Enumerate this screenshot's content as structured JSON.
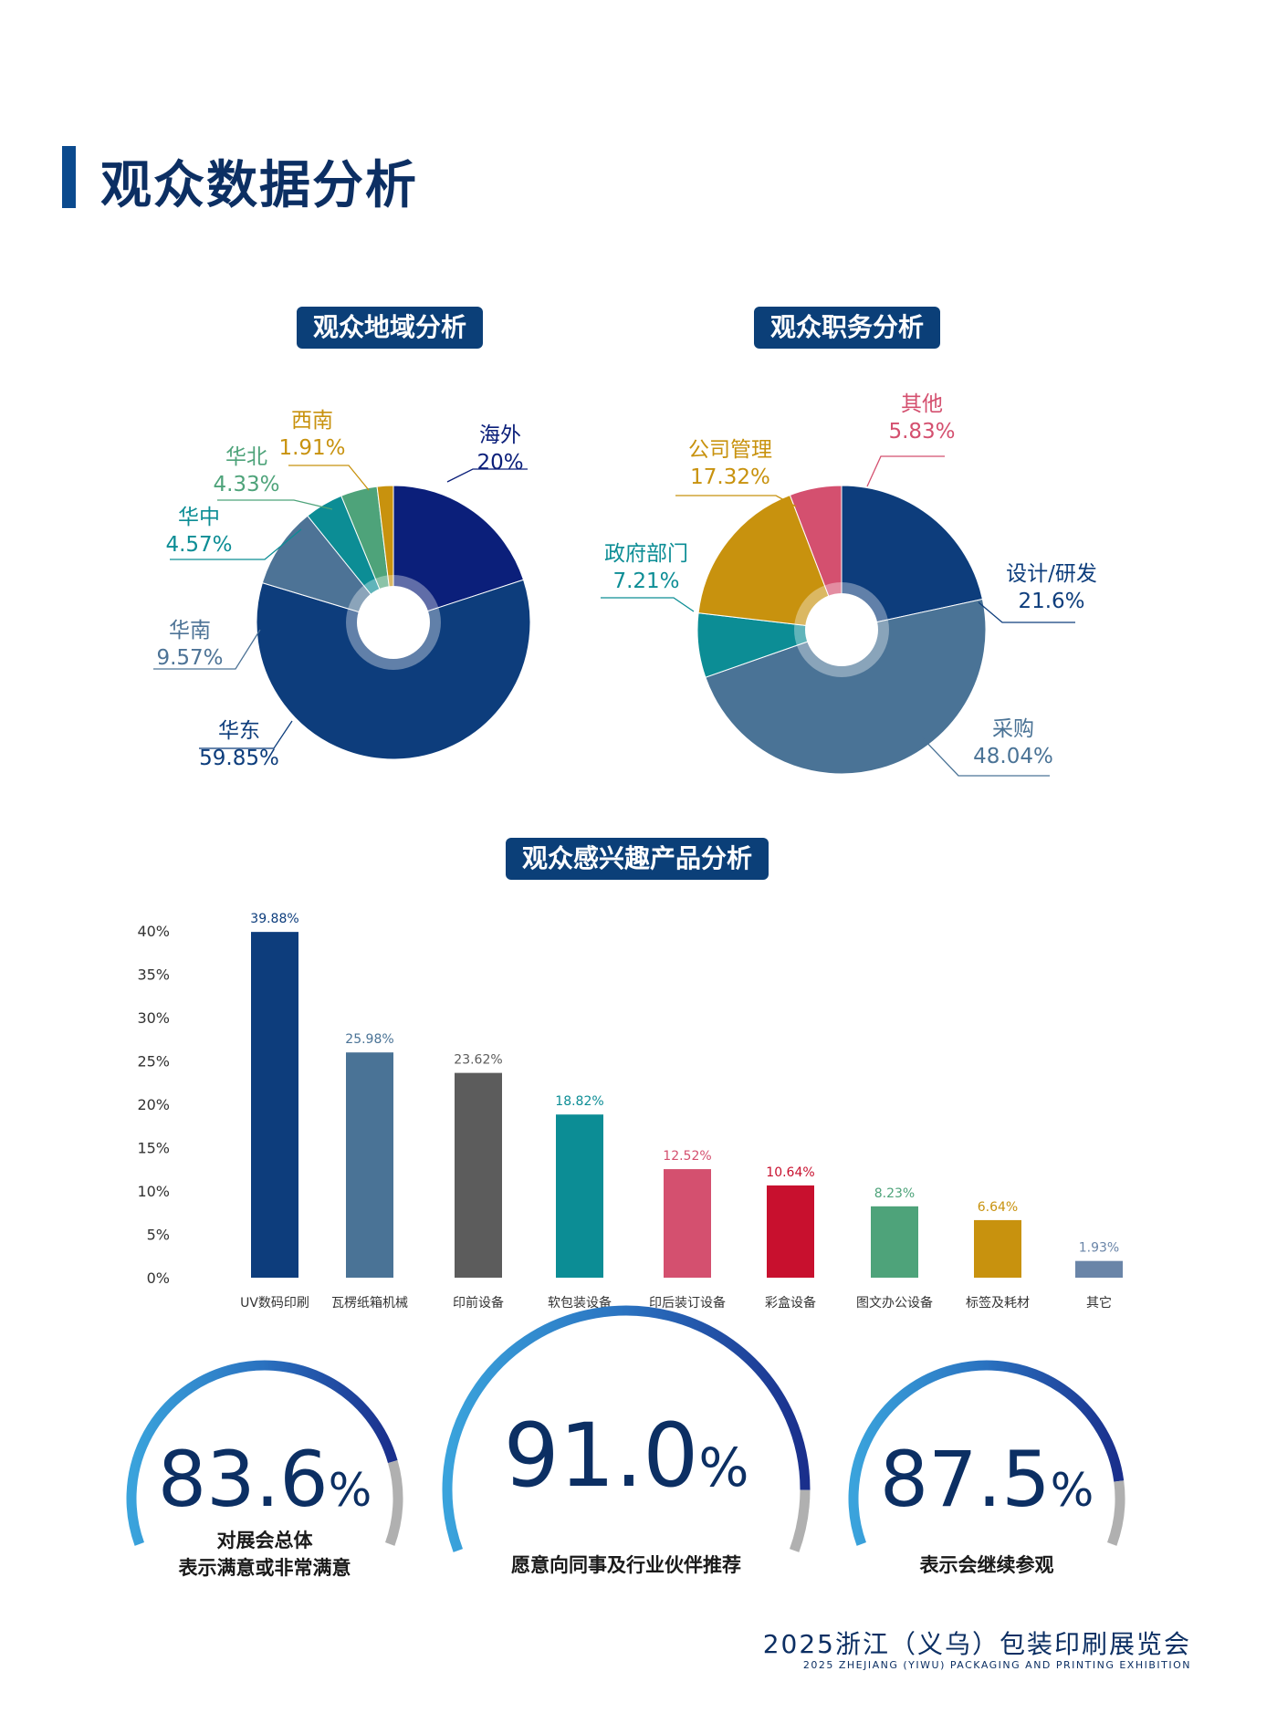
{
  "page": {
    "title": "观众数据分析",
    "footer_cn": "2025浙江（义乌）包装印刷展览会",
    "footer_en": "2025 ZHEJIANG (YIWU) PACKAGING AND PRINTING EXHIBITION"
  },
  "colors": {
    "title_bar": "#0b4a8e",
    "pill_bg": "#0b3f78"
  },
  "chart_data": [
    {
      "type": "pie",
      "title": "观众地域分析",
      "slices": [
        {
          "label": "海外",
          "value": 20,
          "value_label": "20%",
          "color": "#0b1f7a",
          "label_color": "#0b1f7a"
        },
        {
          "label": "华东",
          "value": 59.85,
          "value_label": "59.85%",
          "color": "#0d3d7c",
          "label_color": "#0d3d7c"
        },
        {
          "label": "华南",
          "value": 9.57,
          "value_label": "9.57%",
          "color": "#4d7396",
          "label_color": "#4d7396"
        },
        {
          "label": "华中",
          "value": 4.57,
          "value_label": "4.57%",
          "color": "#0c8d95",
          "label_color": "#0c8d95"
        },
        {
          "label": "华北",
          "value": 4.33,
          "value_label": "4.33%",
          "color": "#4ea37a",
          "label_color": "#4ea37a"
        },
        {
          "label": "西南",
          "value": 1.91,
          "value_label": "1.91%",
          "color": "#c8920e",
          "label_color": "#c8920e"
        }
      ]
    },
    {
      "type": "pie",
      "title": "观众职务分析",
      "slices": [
        {
          "label": "设计/研发",
          "value": 21.6,
          "value_label": "21.6%",
          "color": "#0d3d7c",
          "label_color": "#0d3d7c"
        },
        {
          "label": "采购",
          "value": 48.04,
          "value_label": "48.04%",
          "color": "#4a7396",
          "label_color": "#4a7396"
        },
        {
          "label": "政府部门",
          "value": 7.21,
          "value_label": "7.21%",
          "color": "#0c8d95",
          "label_color": "#0c8d95"
        },
        {
          "label": "公司管理",
          "value": 17.32,
          "value_label": "17.32%",
          "color": "#c8920e",
          "label_color": "#c8920e"
        },
        {
          "label": "其他",
          "value": 5.83,
          "value_label": "5.83%",
          "color": "#d4506f",
          "label_color": "#d4506f"
        }
      ]
    },
    {
      "type": "bar",
      "title": "观众感兴趣产品分析",
      "categories": [
        "UV数码印刷",
        "瓦楞纸箱机械",
        "印前设备",
        "软包装设备",
        "印后装订设备",
        "彩盒设备",
        "图文办公设备",
        "标签及耗材",
        "其它"
      ],
      "values": [
        39.88,
        25.98,
        23.62,
        18.82,
        12.52,
        10.64,
        8.23,
        6.64,
        1.93
      ],
      "value_labels": [
        "39.88%",
        "25.98%",
        "23.62%",
        "18.82%",
        "12.52%",
        "10.64%",
        "8.23%",
        "6.64%",
        "1.93%"
      ],
      "colors": [
        "#0d3d7c",
        "#4a7396",
        "#5c5c5c",
        "#0c8d95",
        "#d4506f",
        "#c8102e",
        "#4ea37a",
        "#c8920e",
        "#6a85a8"
      ],
      "ylim": [
        0,
        40
      ],
      "yticks": [
        "0%",
        "5%",
        "10%",
        "15%",
        "20%",
        "25%",
        "30%",
        "35%",
        "40%"
      ],
      "grid": false,
      "legend": "none"
    }
  ],
  "gauges": [
    {
      "value": 83.6,
      "value_text": "83.6",
      "unit": "%",
      "caption_lines": [
        "对展会总体",
        "表示满意或非常满意"
      ]
    },
    {
      "value": 91.0,
      "value_text": "91.0",
      "unit": "%",
      "caption_lines": [
        "愿意向同事及行业伙伴推荐"
      ]
    },
    {
      "value": 87.5,
      "value_text": "87.5",
      "unit": "%",
      "caption_lines": [
        "表示会继续参观"
      ]
    }
  ]
}
